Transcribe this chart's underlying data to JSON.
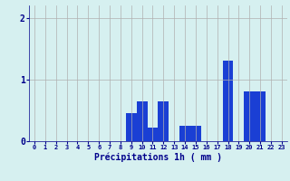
{
  "hours": [
    0,
    1,
    2,
    3,
    4,
    5,
    6,
    7,
    8,
    9,
    10,
    11,
    12,
    13,
    14,
    15,
    16,
    17,
    18,
    19,
    20,
    21,
    22,
    23
  ],
  "values": [
    0,
    0,
    0,
    0,
    0,
    0,
    0,
    0,
    0,
    0.45,
    0.65,
    0.22,
    0.65,
    0,
    0.25,
    0.25,
    0,
    0,
    1.3,
    0,
    0.8,
    0.8,
    0,
    0
  ],
  "bar_color": "#1a3fd4",
  "background_color": "#d6f0f0",
  "grid_color": "#b0b0b0",
  "xlabel": "Précipitations 1h ( mm )",
  "xlabel_color": "#00008b",
  "tick_color": "#00008b",
  "ylim": [
    0,
    2.2
  ],
  "yticks": [
    0,
    1,
    2
  ]
}
